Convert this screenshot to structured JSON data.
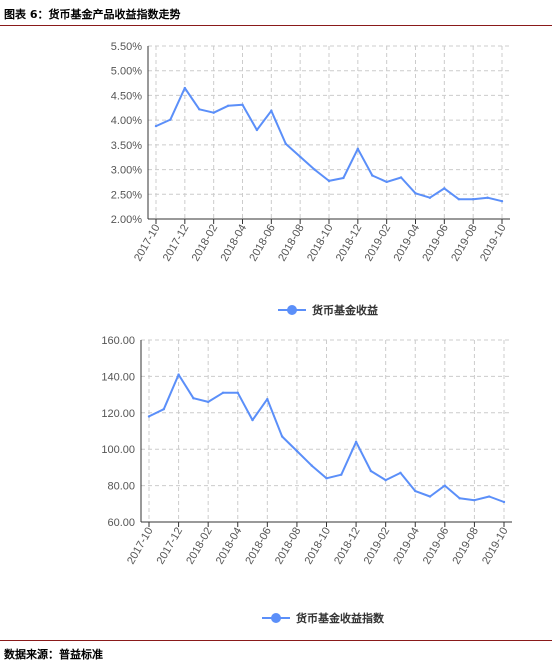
{
  "header": {
    "title": "图表 6：货币基金产品收益指数走势"
  },
  "footer": {
    "source": "数据来源：普益标准"
  },
  "colors": {
    "line": "#5b8ff9",
    "axis": "#333333",
    "grid": "#cccccc",
    "rule": "#8a1a1a"
  },
  "chart_data": [
    {
      "type": "line",
      "title": "",
      "xlabel": "",
      "ylabel": "",
      "categories": [
        "2017-10",
        "2017-11",
        "2017-12",
        "2018-01",
        "2018-02",
        "2018-03",
        "2018-04",
        "2018-05",
        "2018-06",
        "2018-07",
        "2018-08",
        "2018-09",
        "2018-10",
        "2018-11",
        "2018-12",
        "2019-01",
        "2019-02",
        "2019-03",
        "2019-04",
        "2019-05",
        "2019-06",
        "2019-07",
        "2019-08",
        "2019-09",
        "2019-10"
      ],
      "xtick_labels": [
        "2017-10",
        "2017-12",
        "2018-02",
        "2018-04",
        "2018-06",
        "2018-08",
        "2018-10",
        "2018-12",
        "2019-02",
        "2019-04",
        "2019-06",
        "2019-08",
        "2019-10"
      ],
      "ylim": [
        2.0,
        5.5
      ],
      "yticks": [
        "2.00%",
        "2.50%",
        "3.00%",
        "3.50%",
        "4.00%",
        "4.50%",
        "5.00%",
        "5.50%"
      ],
      "grid": true,
      "legend_position": "bottom",
      "series": [
        {
          "name": "货币基金收益",
          "values": [
            3.88,
            4.01,
            4.65,
            4.22,
            4.15,
            4.29,
            4.31,
            3.8,
            4.19,
            3.52,
            3.26,
            3.0,
            2.77,
            2.83,
            3.42,
            2.88,
            2.75,
            2.84,
            2.52,
            2.43,
            2.62,
            2.4,
            2.4,
            2.43,
            2.36
          ]
        }
      ]
    },
    {
      "type": "line",
      "title": "",
      "xlabel": "",
      "ylabel": "",
      "categories": [
        "2017-10",
        "2017-11",
        "2017-12",
        "2018-01",
        "2018-02",
        "2018-03",
        "2018-04",
        "2018-05",
        "2018-06",
        "2018-07",
        "2018-08",
        "2018-09",
        "2018-10",
        "2018-11",
        "2018-12",
        "2019-01",
        "2019-02",
        "2019-03",
        "2019-04",
        "2019-05",
        "2019-06",
        "2019-07",
        "2019-08",
        "2019-09",
        "2019-10"
      ],
      "xtick_labels": [
        "2017-10",
        "2017-12",
        "2018-02",
        "2018-04",
        "2018-06",
        "2018-08",
        "2018-10",
        "2018-12",
        "2019-02",
        "2019-04",
        "2019-06",
        "2019-08",
        "2019-10"
      ],
      "ylim": [
        60,
        160
      ],
      "yticks": [
        "60.00",
        "80.00",
        "100.00",
        "120.00",
        "140.00",
        "160.00"
      ],
      "grid": true,
      "legend_position": "bottom",
      "series": [
        {
          "name": "货币基金收益指数",
          "values": [
            118,
            122,
            141,
            128,
            126,
            131,
            131,
            116,
            127.5,
            107,
            99,
            91,
            84,
            86,
            104,
            88,
            83,
            87,
            77,
            74,
            80,
            73,
            72,
            74,
            71
          ]
        }
      ]
    }
  ]
}
